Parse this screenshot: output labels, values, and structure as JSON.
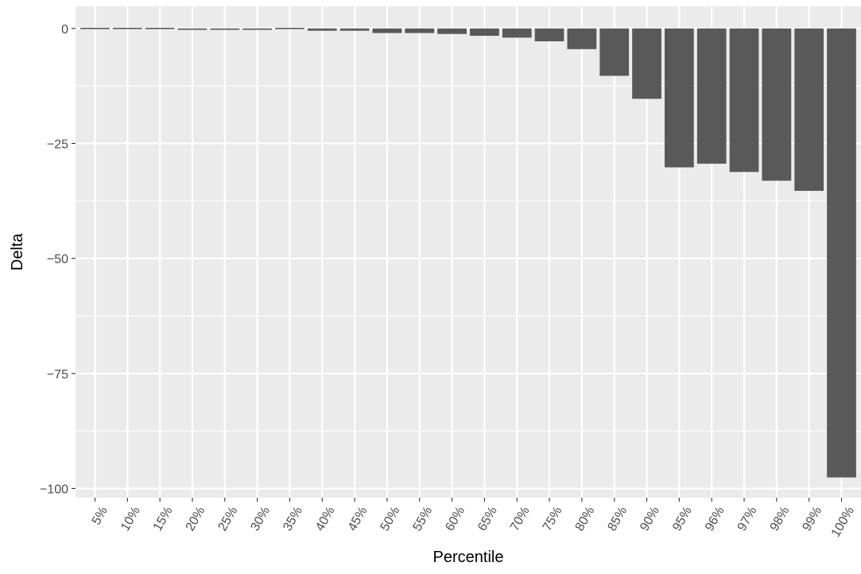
{
  "chart_data": {
    "type": "bar",
    "title": "",
    "xlabel": "Percentile",
    "ylabel": "Delta",
    "categories": [
      "5%",
      "10%",
      "15%",
      "20%",
      "25%",
      "30%",
      "35%",
      "40%",
      "45%",
      "50%",
      "55%",
      "60%",
      "65%",
      "70%",
      "75%",
      "80%",
      "85%",
      "90%",
      "95%",
      "96%",
      "97%",
      "98%",
      "99%",
      "100%"
    ],
    "values": [
      -0.1,
      -0.1,
      -0.2,
      -0.3,
      -0.3,
      -0.3,
      0.2,
      -0.5,
      -0.5,
      -1.0,
      -1.0,
      -1.2,
      -1.6,
      -2.0,
      -2.8,
      -4.5,
      -10.3,
      -15.3,
      -30.2,
      -29.4,
      -31.2,
      -33.1,
      -35.3,
      -97.6
    ],
    "ylim": [
      -102,
      4.8
    ],
    "yticks": [
      0,
      -25,
      -50,
      -75,
      -100
    ],
    "ytick_labels": [
      "0",
      "−25",
      "−50",
      "−75",
      "−100"
    ],
    "grid": true,
    "colors": {
      "panel_background": "#EBEBEB",
      "grid_line": "#FFFFFF",
      "bar_fill": "#595959",
      "axis_text": "#4D4D4D",
      "axis_title": "#000000"
    }
  }
}
